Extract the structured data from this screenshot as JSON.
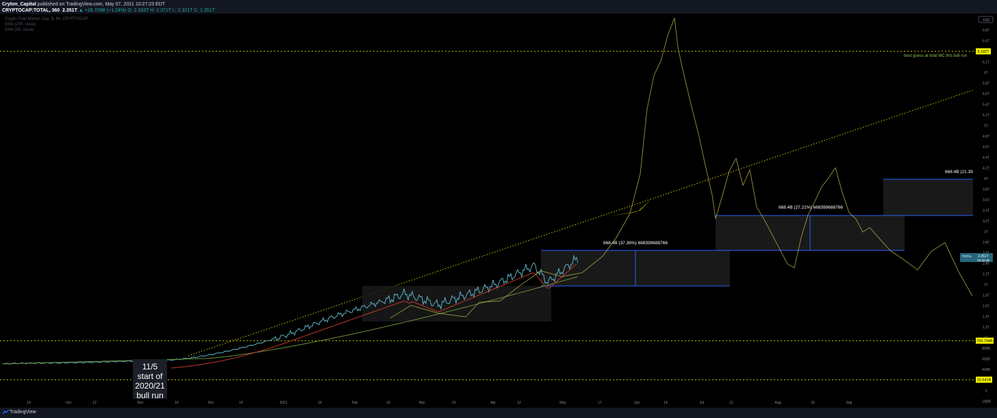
{
  "header": {
    "publisher": "Cryton_Capital",
    "published_text": "published on TradingView.com, May 07, 2021 10:27:23 EDT",
    "symbol_line": "CRYPTOCAP:TOTAL, 360",
    "price": "2.351T",
    "change": "▲ +28.709B (+1.24%)",
    "ohlc": "O: 2.333T  H: 2.371T  L: 2.321T  C: 2.351T"
  },
  "legend": {
    "line1": "Crypto Total Market Cap, $, 6h, CRYPTOCAP",
    "line2": "EMA (200, close)",
    "line3": "EMA (50, close)"
  },
  "footer": {
    "brand": "TradingView"
  },
  "chart_data": {
    "type": "line",
    "y_scale": "log",
    "currency_button": "USD",
    "y_tick_labels": [
      "6.8T",
      "6.6T",
      "6.4T",
      "6.2T",
      "6T",
      "5.8T",
      "5.6T",
      "5.4T",
      "5.2T",
      "5T",
      "4.8T",
      "4.6T",
      "4.4T",
      "4.2T",
      "4T",
      "3.8T",
      "3.6T",
      "3.4T",
      "3.2T",
      "3T",
      "2.8T",
      "2.6T",
      "2.4T",
      "2.2T",
      "2T",
      "1.8T",
      "1.6T",
      "1.4T",
      "1.2T",
      "1T",
      "800B",
      "600B",
      "400B",
      "200B",
      "0",
      "-200B"
    ],
    "x_tick_labels": [
      "14",
      "Oct",
      "12",
      "Nov",
      "16",
      "Dec",
      "14",
      "2021",
      "18",
      "Feb",
      "15",
      "Mar",
      "15",
      "Apr",
      "12",
      "May",
      "17",
      "Jun",
      "14",
      "Jul",
      "12",
      "Aug",
      "16",
      "Sep"
    ],
    "price_tags": {
      "top_level": "6.182T",
      "current_label": "TOTAL",
      "current_value": "2.351T",
      "countdown": "03:32:39",
      "mid_level": "759.794B",
      "low_level": "15.541B"
    },
    "series": [
      {
        "name": "TOTAL",
        "kind": "price"
      },
      {
        "name": "EMA (200, close)",
        "kind": "ema"
      },
      {
        "name": "EMA (50, close)",
        "kind": "ema"
      }
    ],
    "annotations": {
      "best_guess": "best guess at total MC this bull run",
      "measure1": "668.4B (37.36%) 668399688766",
      "measure2": "668.4B (27.21%) 668399688766",
      "measure3": "668.4B (21.39",
      "callout_lines": [
        "11/5",
        "start of",
        "2020/21",
        "bull run"
      ]
    },
    "colors": {
      "price": "#5bb0c4",
      "projection": "#b8b24a",
      "ema200": "#6a8f3a",
      "ema50": "#c0392b",
      "level": "#d4d400",
      "measure": "#2962ff"
    }
  }
}
